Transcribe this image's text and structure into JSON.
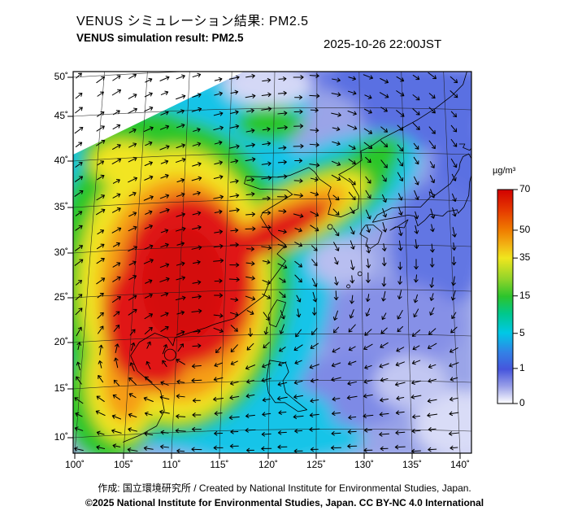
{
  "header": {
    "title_ja": "VENUS シミュレーション結果: PM2.5",
    "title_en": "VENUS simulation result: PM2.5",
    "timestamp": "2025-10-26 22:00JST"
  },
  "map": {
    "lat_labels": [
      "50˚",
      "45˚",
      "40˚",
      "35˚",
      "30˚",
      "25˚",
      "20˚",
      "15˚",
      "10˚"
    ],
    "lon_labels": [
      "100˚",
      "105˚",
      "110˚",
      "115˚",
      "120˚",
      "125˚",
      "130˚",
      "135˚",
      "140˚"
    ]
  },
  "colorbar": {
    "unit": "µg/m³",
    "ticks": [
      {
        "label": "70",
        "p": 0.0
      },
      {
        "label": "50",
        "p": 0.19
      },
      {
        "label": "35",
        "p": 0.32
      },
      {
        "label": "15",
        "p": 0.497
      },
      {
        "label": "5",
        "p": 0.672
      },
      {
        "label": "1",
        "p": 0.836
      },
      {
        "label": "0",
        "p": 1.0
      }
    ],
    "stops": [
      {
        "p": 0.0,
        "c": "#d20000"
      },
      {
        "p": 0.1,
        "c": "#e63c00"
      },
      {
        "p": 0.19,
        "c": "#f07d00"
      },
      {
        "p": 0.26,
        "c": "#f2b414"
      },
      {
        "p": 0.32,
        "c": "#f0e61e"
      },
      {
        "p": 0.42,
        "c": "#8fd42a"
      },
      {
        "p": 0.5,
        "c": "#2cc42c"
      },
      {
        "p": 0.58,
        "c": "#00c88c"
      },
      {
        "p": 0.67,
        "c": "#00c8e6"
      },
      {
        "p": 0.76,
        "c": "#3282e6"
      },
      {
        "p": 0.84,
        "c": "#4655dc"
      },
      {
        "p": 0.92,
        "c": "#9aa0e8"
      },
      {
        "p": 1.0,
        "c": "#ffffff"
      }
    ]
  },
  "footer": {
    "credit": "作成: 国立環境研究所 / Created by National Institute for Environmental Studies, Japan.",
    "license": "©2025 National Institute for Environmental Studies, Japan. CC BY-NC 4.0 International"
  },
  "chart_data": {
    "type": "heatmap",
    "title": "VENUS simulation result: PM2.5",
    "variable": "PM2.5 concentration",
    "unit": "µg/m³",
    "valid_time": "2025-10-26 22:00JST",
    "lon_range": [
      100,
      140
    ],
    "lat_range": [
      10,
      50
    ],
    "lon_ticks": [
      100,
      105,
      110,
      115,
      120,
      125,
      130,
      135,
      140
    ],
    "lat_ticks": [
      10,
      15,
      20,
      25,
      30,
      35,
      40,
      45,
      50
    ],
    "color_scale": {
      "levels": [
        0,
        1,
        5,
        15,
        35,
        50,
        70
      ],
      "colors": [
        "#ffffff",
        "#4655dc",
        "#00c8e6",
        "#2cc42c",
        "#f2e522",
        "#f59d12",
        "#d20000"
      ]
    },
    "overlay": "wind vector field (black arrows)",
    "features": [
      "PM2.5 maximum above 70 µg/m³ over central and southern China (about 105-122E, 20-34N)",
      "high-concentration plume extending northeast across the Yellow Sea and Korea Strait toward western Japan",
      "moderate values (5-35 µg/m³) over northern China, Korea and southeast Asia",
      "low concentrations (below 5 µg/m³) over the northwestern Pacific east of Japan"
    ]
  }
}
